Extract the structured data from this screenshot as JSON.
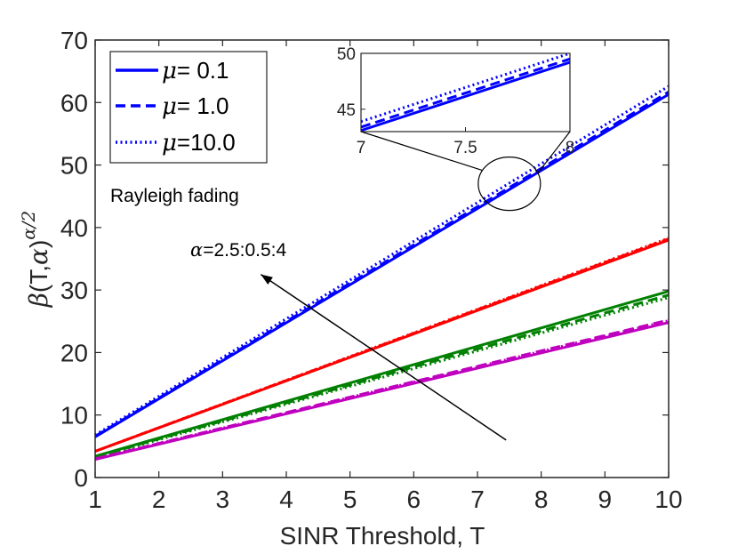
{
  "chart_data": {
    "type": "line",
    "title": "",
    "xlabel": "SINR Threshold, T",
    "ylabel_parts": {
      "beta": "β",
      "args": "(T,",
      "alpha": "α",
      "close": ")",
      "exponent": "α/2"
    },
    "xlim": [
      1,
      10
    ],
    "ylim": [
      0,
      70
    ],
    "xticks": [
      "1",
      "2",
      "3",
      "4",
      "5",
      "6",
      "7",
      "8",
      "9",
      "10"
    ],
    "yticks": [
      "0",
      "10",
      "20",
      "30",
      "40",
      "50",
      "60",
      "70"
    ],
    "x": [
      1,
      10
    ],
    "colors": {
      "alpha_4": "#0000ff",
      "alpha_3_5": "#ff0000",
      "alpha_3": "#008000",
      "alpha_2_5": "#bf00bf"
    },
    "series": [
      {
        "name": "alpha=4, mu=0.1",
        "color": "#0000ff",
        "style": "solid",
        "values": [
          6.5,
          61.3
        ]
      },
      {
        "name": "alpha=4, mu=1.0",
        "color": "#0000ff",
        "style": "dashed",
        "values": [
          6.6,
          61.7
        ]
      },
      {
        "name": "alpha=4, mu=10.0",
        "color": "#0000ff",
        "style": "dotted",
        "values": [
          6.8,
          62.6
        ]
      },
      {
        "name": "alpha=3.5, mu=0.1",
        "color": "#ff0000",
        "style": "solid",
        "values": [
          4.2,
          38.0
        ]
      },
      {
        "name": "alpha=3.5, mu=1.0",
        "color": "#ff0000",
        "style": "dashed",
        "values": [
          4.2,
          38.2
        ]
      },
      {
        "name": "alpha=3.5, mu=10.0",
        "color": "#ff0000",
        "style": "dotted",
        "values": [
          4.2,
          38.3
        ]
      },
      {
        "name": "alpha=3, mu=0.1",
        "color": "#008000",
        "style": "solid",
        "values": [
          3.4,
          29.8
        ]
      },
      {
        "name": "alpha=3, mu=1.0",
        "color": "#008000",
        "style": "dashed",
        "values": [
          3.3,
          29.2
        ]
      },
      {
        "name": "alpha=3, mu=10.0",
        "color": "#008000",
        "style": "dotted",
        "values": [
          3.2,
          28.8
        ]
      },
      {
        "name": "alpha=2.5, mu=0.1",
        "color": "#bf00bf",
        "style": "solid",
        "values": [
          2.9,
          24.8
        ]
      },
      {
        "name": "alpha=2.5, mu=1.0",
        "color": "#bf00bf",
        "style": "dashed",
        "values": [
          3.0,
          25.2
        ]
      },
      {
        "name": "alpha=2.5, mu=10.0",
        "color": "#bf00bf",
        "style": "dotted",
        "values": [
          3.0,
          25.1
        ]
      }
    ],
    "legend": {
      "placement": "top-left",
      "entries": [
        {
          "symbol": "μ",
          "label": "= 0.1",
          "style": "solid"
        },
        {
          "symbol": "μ",
          "label": "= 1.0",
          "style": "dashed"
        },
        {
          "symbol": "μ",
          "label": "=10.0",
          "style": "dotted"
        }
      ]
    },
    "annotations": {
      "fading": "Rayleigh fading",
      "alpha_symbol": "α",
      "alpha_range": "=2.5:0.5:4",
      "arrow_from": {
        "x": 7.45,
        "y": 6
      },
      "arrow_to": {
        "x": 3.6,
        "y": 32.5
      },
      "zoom_ellipse_center": {
        "x": 7.5,
        "y": 47
      }
    },
    "inset": {
      "xlim": [
        7,
        8
      ],
      "ylim": [
        43,
        50
      ],
      "xticks": [
        "7",
        "7.5",
        "8"
      ],
      "yticks": [
        "45",
        "50"
      ],
      "series": [
        {
          "style": "solid",
          "values": [
            43.1,
            49.2
          ]
        },
        {
          "style": "dashed",
          "values": [
            43.4,
            49.5
          ]
        },
        {
          "style": "dotted",
          "values": [
            43.9,
            50.0
          ]
        }
      ]
    }
  }
}
